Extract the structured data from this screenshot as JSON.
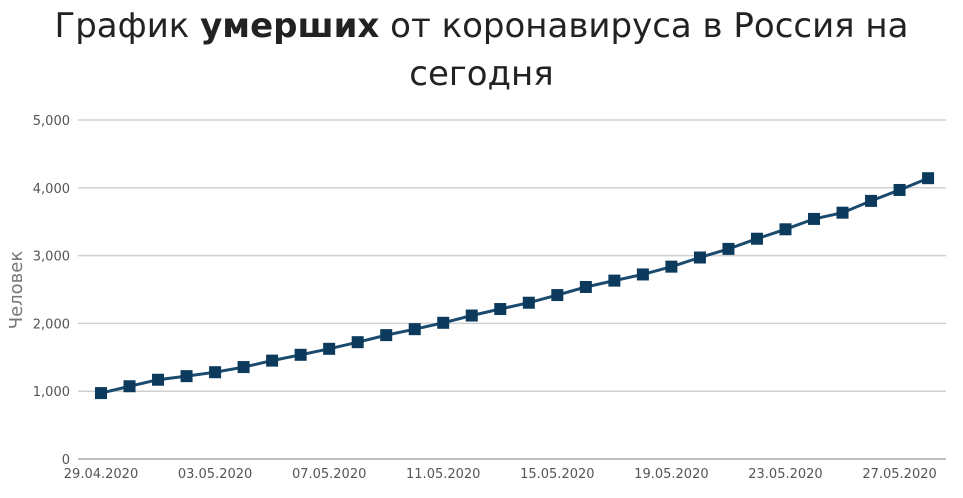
{
  "page_title": {
    "prefix": "График ",
    "bold": "умерших",
    "rest": " от коронавируса в Россия на",
    "line2": "сегодня"
  },
  "chart_data": {
    "type": "line",
    "title": "График умерших от коронавируса в Россия на сегодня",
    "xlabel": "",
    "ylabel": "Человек",
    "ylim": [
      0,
      5000
    ],
    "yticks": [
      0,
      1000,
      2000,
      3000,
      4000,
      5000
    ],
    "ytick_labels": [
      "0",
      "1,000",
      "2,000",
      "3,000",
      "4,000",
      "5,000"
    ],
    "xtick_labels": [
      "29.04.2020",
      "03.05.2020",
      "07.05.2020",
      "11.05.2020",
      "15.05.2020",
      "19.05.2020",
      "23.05.2020",
      "27.05.2020"
    ],
    "grid": true,
    "legend": "none",
    "line_color": "#1a4a6e",
    "marker_color": "#0b3a5c",
    "grid_color": "#d0d0d0",
    "series": [
      {
        "x": [
          "29.04.2020",
          "30.04.2020",
          "01.05.2020",
          "02.05.2020",
          "03.05.2020",
          "04.05.2020",
          "05.05.2020",
          "06.05.2020",
          "07.05.2020",
          "08.05.2020",
          "09.05.2020",
          "10.05.2020",
          "11.05.2020",
          "12.05.2020",
          "13.05.2020",
          "14.05.2020",
          "15.05.2020",
          "16.05.2020",
          "17.05.2020",
          "18.05.2020",
          "19.05.2020",
          "20.05.2020",
          "21.05.2020",
          "22.05.2020",
          "23.05.2020",
          "24.05.2020",
          "25.05.2020",
          "26.05.2020",
          "27.05.2020",
          "28.05.2020"
        ],
        "values": [
          972,
          1073,
          1169,
          1222,
          1280,
          1356,
          1451,
          1537,
          1625,
          1723,
          1827,
          1915,
          2009,
          2116,
          2212,
          2305,
          2418,
          2537,
          2631,
          2722,
          2837,
          2972,
          3099,
          3249,
          3388,
          3541,
          3633,
          3807,
          3968,
          4142
        ]
      }
    ]
  }
}
